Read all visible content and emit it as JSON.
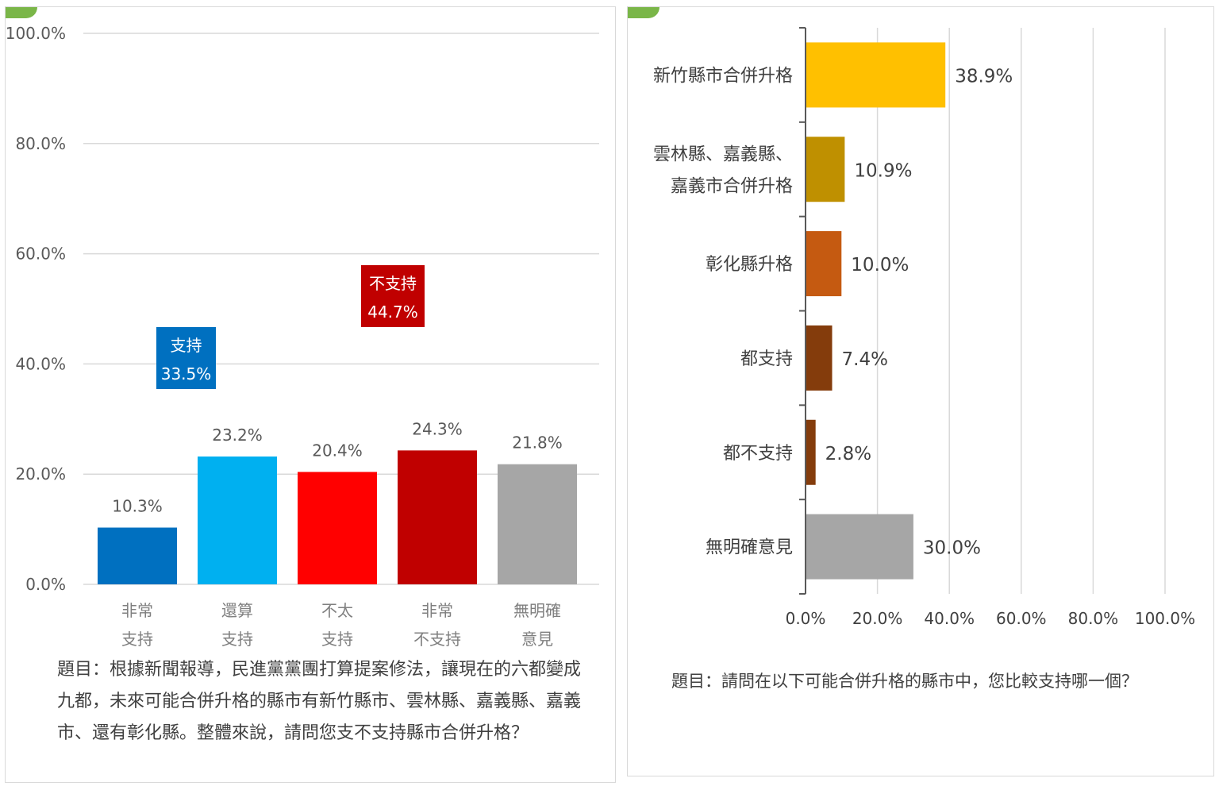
{
  "colors": {
    "gridline": "#d9d9d9",
    "axis": "#595959",
    "support_badge": "#0070c0",
    "oppose_badge": "#c00000",
    "badge_text": "#ffffff",
    "corner_accent": "#7ab648"
  },
  "left_chart": {
    "question": "題目：根據新聞報導，民進黨黨團打算提案修法，讓現在的六都變成九都，未來可能合併升格的縣市有新竹縣市、雲林縣、嘉義縣、嘉義市、還有彰化縣。整體來說，請問您支不支持縣市合併升格？",
    "summary_badges": [
      {
        "label": "支持",
        "value": "33.5%",
        "color": "#0070c0"
      },
      {
        "label": "不支持",
        "value": "44.7%",
        "color": "#c00000"
      }
    ]
  },
  "right_chart": {
    "question": "題目：請問在以下可能合併升格的縣市中，您比較支持哪一個？"
  },
  "chart_data": [
    {
      "type": "bar",
      "orientation": "vertical",
      "categories": [
        [
          "非常",
          "支持"
        ],
        [
          "還算",
          "支持"
        ],
        [
          "不太",
          "支持"
        ],
        [
          "非常",
          "不支持"
        ],
        [
          "無明確",
          "意見"
        ]
      ],
      "values": [
        10.3,
        23.2,
        20.4,
        24.3,
        21.8
      ],
      "data_labels": [
        "10.3%",
        "23.2%",
        "20.4%",
        "24.3%",
        "21.8%"
      ],
      "colors": [
        "#0070c0",
        "#00b0f0",
        "#ff0000",
        "#c00000",
        "#a6a6a6"
      ],
      "ylim": [
        0,
        100
      ],
      "yticks": [
        "0.0%",
        "20.0%",
        "40.0%",
        "60.0%",
        "80.0%",
        "100.0%"
      ],
      "grid": true,
      "legend": "none"
    },
    {
      "type": "bar",
      "orientation": "horizontal",
      "categories": [
        [
          "新竹縣市合併升格"
        ],
        [
          "雲林縣、嘉義縣、",
          "嘉義市合併升格"
        ],
        [
          "彰化縣升格"
        ],
        [
          "都支持"
        ],
        [
          "都不支持"
        ],
        [
          "無明確意見"
        ]
      ],
      "values": [
        38.9,
        10.9,
        10.0,
        7.4,
        2.8,
        30.0
      ],
      "data_labels": [
        "38.9%",
        "10.9%",
        "10.0%",
        "7.4%",
        "2.8%",
        "30.0%"
      ],
      "colors": [
        "#ffc000",
        "#bf9000",
        "#c55a11",
        "#843c0c",
        "#843c0c",
        "#a6a6a6"
      ],
      "xlim": [
        0,
        100
      ],
      "xticks": [
        "0.0%",
        "20.0%",
        "40.0%",
        "60.0%",
        "80.0%",
        "100.0%"
      ],
      "grid": true,
      "legend": "none"
    }
  ]
}
